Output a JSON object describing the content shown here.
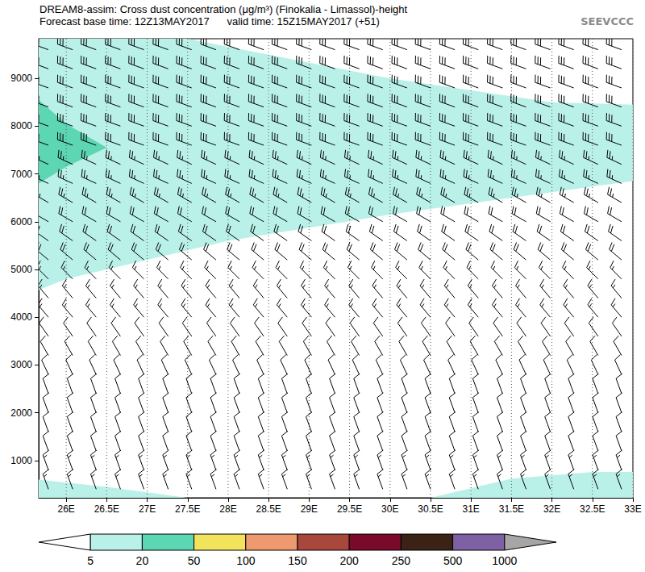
{
  "chart_data": {
    "type": "cross_section",
    "title": "DREAM8-assim: Cross dust concentration (μg/m³) (Finokalia - Limassol)-height",
    "subtitle": "Forecast base time: 12Z13MAY2017      valid time: 15Z15MAY2017 (+51)",
    "logo_text": "SEEVCCC",
    "xlim": [
      25.66,
      33
    ],
    "xticks": [
      {
        "value": 26,
        "label": "26E"
      },
      {
        "value": 26.5,
        "label": "26.5E"
      },
      {
        "value": 27,
        "label": "27E"
      },
      {
        "value": 27.5,
        "label": "27.5E"
      },
      {
        "value": 28,
        "label": "28E"
      },
      {
        "value": 28.5,
        "label": "28.5E"
      },
      {
        "value": 29,
        "label": "29E"
      },
      {
        "value": 29.5,
        "label": "29.5E"
      },
      {
        "value": 30,
        "label": "30E"
      },
      {
        "value": 30.5,
        "label": "30.5E"
      },
      {
        "value": 31,
        "label": "31E"
      },
      {
        "value": 31.5,
        "label": "31.5E"
      },
      {
        "value": 32,
        "label": "32E"
      },
      {
        "value": 32.5,
        "label": "32.5E"
      },
      {
        "value": 33,
        "label": "33E"
      }
    ],
    "ylim": [
      220,
      9830
    ],
    "yticks": [
      1000,
      2000,
      3000,
      4000,
      5000,
      6000,
      7000,
      8000,
      9000
    ],
    "grid": true,
    "regions": [
      {
        "range": [
          5,
          20
        ],
        "points": [
          [
            25.66,
            9830
          ],
          [
            27.5,
            9830
          ],
          [
            30,
            9000
          ],
          [
            32,
            8500
          ],
          [
            33,
            8450
          ],
          [
            33,
            6850
          ],
          [
            30,
            6150
          ],
          [
            28,
            5600
          ],
          [
            26,
            4800
          ],
          [
            25.66,
            4570
          ]
        ]
      },
      {
        "range": [
          20,
          50
        ],
        "points": [
          [
            25.66,
            8550
          ],
          [
            26,
            8050
          ],
          [
            26.5,
            7550
          ],
          [
            26,
            7150
          ],
          [
            25.66,
            6800
          ]
        ]
      },
      {
        "range": [
          5,
          20
        ],
        "points": [
          [
            25.66,
            600
          ],
          [
            26.5,
            450
          ],
          [
            27.5,
            220
          ],
          [
            25.66,
            220
          ]
        ]
      },
      {
        "range": [
          5,
          20
        ],
        "points": [
          [
            30.5,
            220
          ],
          [
            31.5,
            620
          ],
          [
            32.5,
            760
          ],
          [
            33,
            760
          ],
          [
            33,
            220
          ]
        ]
      }
    ],
    "wind": {
      "lon": [
        25.78,
        26.08,
        26.37,
        26.67,
        26.96,
        27.26,
        27.55,
        27.85,
        28.14,
        28.44,
        28.73,
        29.03,
        29.32,
        29.62,
        29.91,
        30.21,
        30.5,
        30.8,
        31.09,
        31.39,
        31.68,
        31.98,
        32.27,
        32.57,
        32.86
      ],
      "height": [
        400,
        800,
        1200,
        1600,
        2000,
        2400,
        2800,
        3200,
        3600,
        4000,
        4400,
        4800,
        5200,
        5600,
        6000,
        6400,
        6800,
        7200,
        7600,
        8000,
        8400,
        8800,
        9200,
        9600
      ],
      "speed": [
        15,
        15,
        10,
        10,
        10,
        10,
        10,
        10,
        10,
        15,
        15,
        15,
        20,
        20,
        20,
        25,
        25,
        25,
        30,
        30,
        30,
        30,
        30,
        30
      ],
      "direction": [
        340,
        340,
        340,
        340,
        340,
        340,
        335,
        330,
        325,
        320,
        320,
        315,
        310,
        305,
        300,
        300,
        295,
        295,
        290,
        290,
        290,
        290,
        290,
        290
      ]
    },
    "colorbar": {
      "levels": [
        5,
        20,
        50,
        100,
        150,
        200,
        250,
        500,
        1000
      ],
      "colors": [
        "#ffffff",
        "#b9f1e9",
        "#5dd6b3",
        "#f2e35c",
        "#ee9a6e",
        "#a8473c",
        "#7a0a2a",
        "#3a2314",
        "#7e60a4",
        "#a6a6a6"
      ]
    }
  }
}
